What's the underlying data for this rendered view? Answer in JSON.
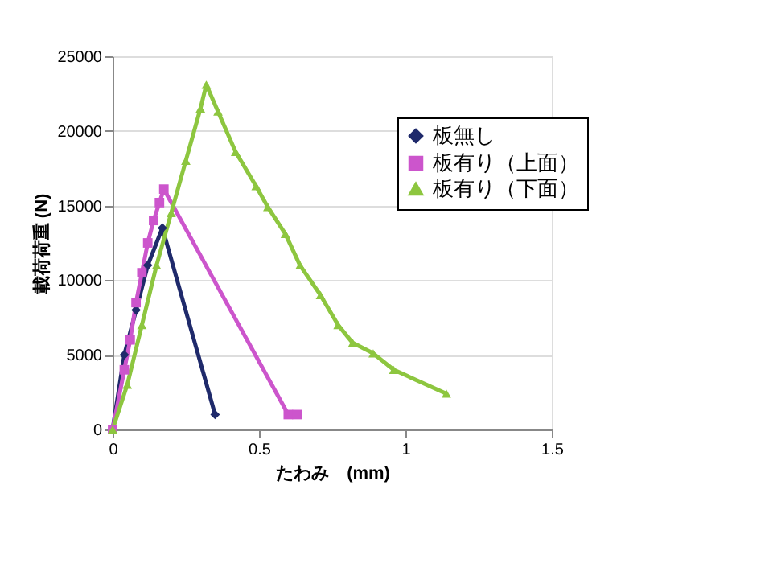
{
  "chart_data": {
    "type": "line",
    "xlabel": "たわみ　(mm)",
    "ylabel": "載荷荷重 (N)",
    "xlim": [
      0,
      1.5
    ],
    "xticks": [
      0,
      {
        "value": 0.5,
        "label": "0.5"
      },
      1,
      {
        "value": 1.5,
        "label": "1.5"
      }
    ],
    "ylim": [
      0,
      25000
    ],
    "yticks": [
      0,
      5000,
      10000,
      15000,
      20000,
      25000
    ],
    "grid": "y",
    "legend": "top right",
    "series": [
      {
        "name": "板無し",
        "color": "#1f2a6b",
        "marker": "diamond",
        "x": [
          0,
          0.04,
          0.08,
          0.12,
          0.17,
          0.35
        ],
        "values": [
          0,
          5000,
          8000,
          11000,
          13500,
          1000
        ]
      },
      {
        "name": "板有り（上面）",
        "color": "#cc55cc",
        "marker": "square",
        "x": [
          0,
          0.04,
          0.06,
          0.08,
          0.1,
          0.12,
          0.14,
          0.16,
          0.175,
          0.6,
          0.63
        ],
        "values": [
          0,
          4000,
          6000,
          8500,
          10500,
          12500,
          14000,
          15200,
          16100,
          1000,
          1000
        ]
      },
      {
        "name": "板有り（下面）",
        "color": "#8dc63f",
        "marker": "triangle",
        "x": [
          0,
          0.05,
          0.1,
          0.15,
          0.2,
          0.25,
          0.3,
          0.32,
          0.36,
          0.42,
          0.49,
          0.53,
          0.59,
          0.64,
          0.71,
          0.77,
          0.82,
          0.89,
          0.96,
          1.14
        ],
        "values": [
          0,
          3000,
          7000,
          11000,
          14500,
          18000,
          21500,
          23100,
          21300,
          18600,
          16300,
          14900,
          13100,
          11000,
          9000,
          7000,
          5800,
          5100,
          4000,
          2400
        ]
      }
    ]
  }
}
